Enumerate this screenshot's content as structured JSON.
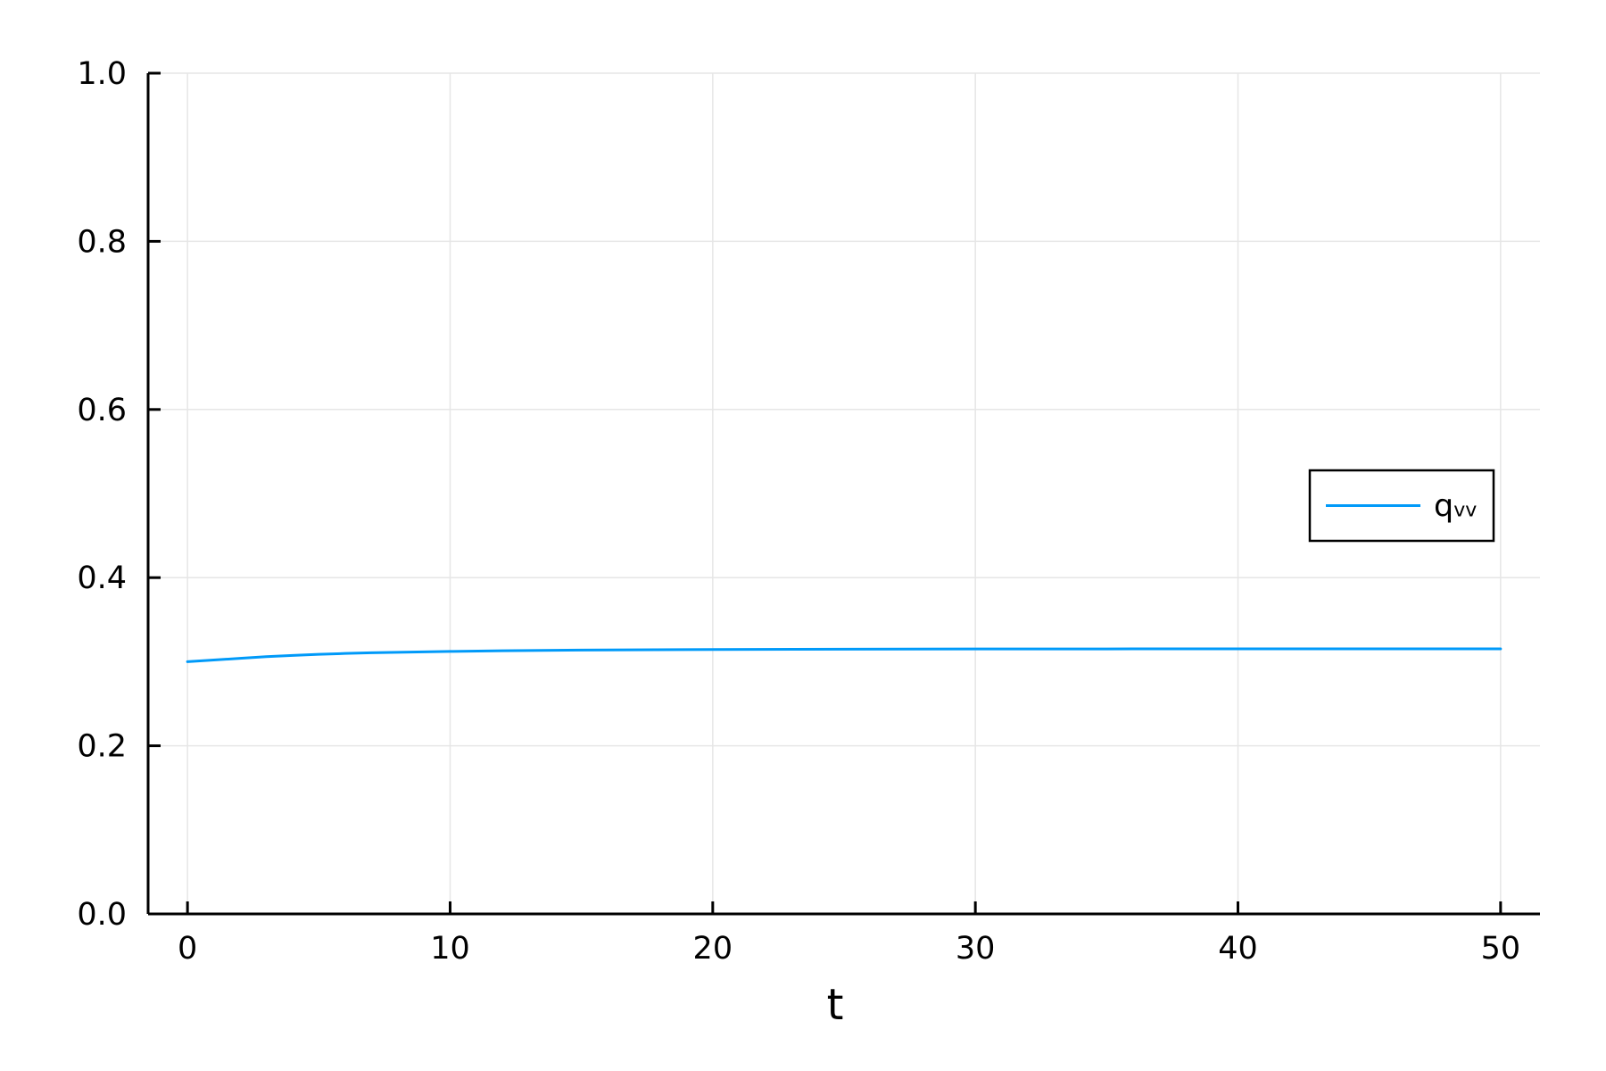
{
  "chart_data": {
    "type": "line",
    "xlabel": "t",
    "ylabel": "",
    "title": "",
    "xlim": [
      -1.5,
      51.5
    ],
    "ylim": [
      0,
      1
    ],
    "xticks": [
      0,
      10,
      20,
      30,
      40,
      50
    ],
    "yticks": [
      0.0,
      0.2,
      0.4,
      0.6,
      0.8,
      1.0
    ],
    "xtick_labels": [
      "0",
      "10",
      "20",
      "30",
      "40",
      "50"
    ],
    "ytick_labels": [
      "0.0",
      "0.2",
      "0.4",
      "0.6",
      "0.8",
      "1.0"
    ],
    "grid": true,
    "legend_position": "right",
    "series": [
      {
        "name": "q",
        "name_subscript": "vv",
        "color": "#009af9",
        "x": [
          0,
          1,
          2,
          3,
          4,
          5,
          6,
          7,
          8,
          10,
          12,
          15,
          20,
          25,
          30,
          35,
          40,
          45,
          50
        ],
        "y": [
          0.3,
          0.302,
          0.304,
          0.306,
          0.3075,
          0.3088,
          0.3098,
          0.3106,
          0.3112,
          0.3122,
          0.313,
          0.3138,
          0.3145,
          0.3149,
          0.3151,
          0.3152,
          0.3153,
          0.3153,
          0.3153
        ]
      }
    ]
  }
}
